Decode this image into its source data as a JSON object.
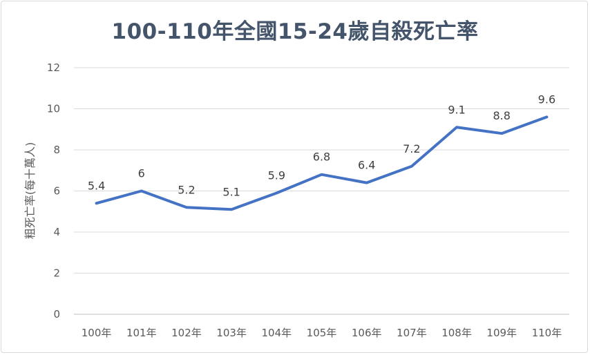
{
  "chart_data": {
    "type": "line",
    "title": "100-110年全國15-24歲自殺死亡率",
    "xlabel": "",
    "ylabel": "粗死亡率(每十萬人)",
    "categories": [
      "100年",
      "101年",
      "102年",
      "103年",
      "104年",
      "105年",
      "106年",
      "107年",
      "108年",
      "109年",
      "110年"
    ],
    "series": [
      {
        "values": [
          5.4,
          6,
          5.2,
          5.1,
          5.9,
          6.8,
          6.4,
          7.2,
          9.1,
          8.8,
          9.6
        ]
      }
    ],
    "ylim": [
      0,
      12
    ],
    "yticks": [
      0,
      2,
      4,
      6,
      8,
      10,
      12
    ],
    "grid": true,
    "legend": "none",
    "line_color": "#4472c4"
  }
}
